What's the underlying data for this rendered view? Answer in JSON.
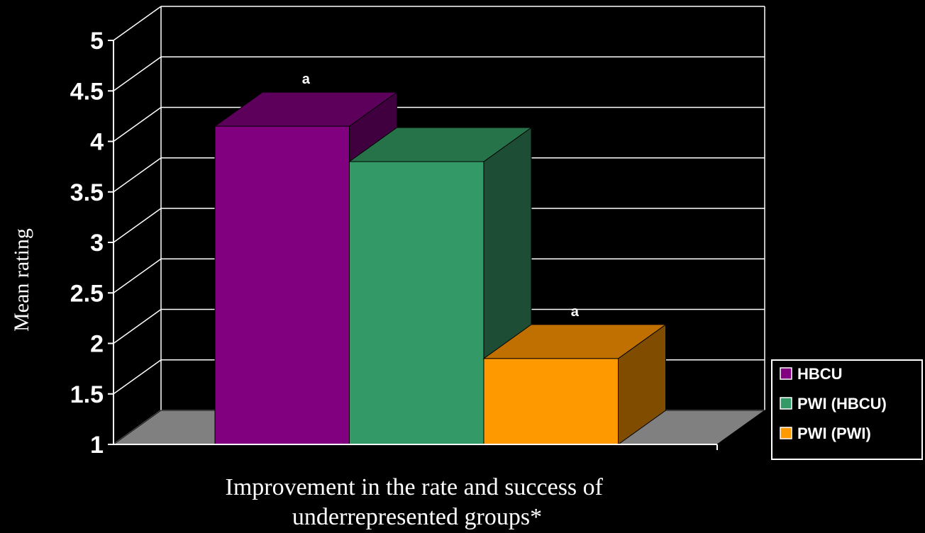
{
  "chart_data": {
    "type": "bar",
    "three_d": true,
    "categories": [
      "Improvement in the rate and success of underrepresented groups*"
    ],
    "xlabel_lines": [
      "Improvement in the rate and success of",
      "underrepresented groups*"
    ],
    "ylabel": "Mean rating",
    "ylim": [
      1,
      5
    ],
    "yticks": [
      "1",
      "1.5",
      "2",
      "2.5",
      "3",
      "3.5",
      "4",
      "4.5",
      "5"
    ],
    "grid": true,
    "legend_position": "right",
    "series": [
      {
        "name": "HBCU",
        "values": [
          4.15
        ],
        "label": "a",
        "color": "#800080",
        "top_color": "#5c005c",
        "side_color": "#400040"
      },
      {
        "name": "PWI (HBCU)",
        "values": [
          3.8
        ],
        "label": "",
        "color": "#339966",
        "top_color": "#267349",
        "side_color": "#1d4d34"
      },
      {
        "name": "PWI (PWI)",
        "values": [
          1.85
        ],
        "label": "a",
        "color": "#ff9900",
        "top_color": "#c07000",
        "side_color": "#7f4c00"
      }
    ]
  }
}
